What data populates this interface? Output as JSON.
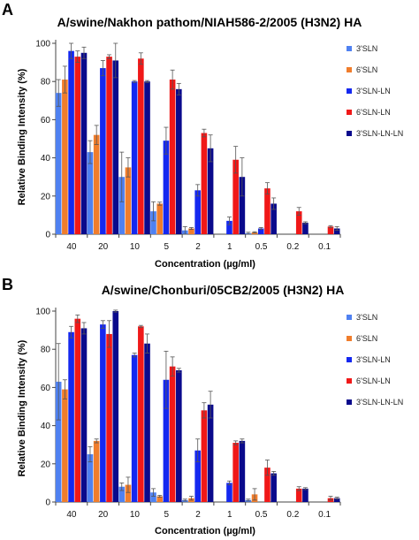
{
  "chart_data": [
    {
      "panel": "A",
      "type": "bar",
      "title": "A/swine/Nakhon pathom/NIAH586-2/2005 (H3N2) HA",
      "xlabel": "Concentration (µg/ml)",
      "ylabel": "Relative Binding Intensity (%)",
      "categories": [
        "40",
        "20",
        "10",
        "5",
        "2",
        "1",
        "0.5",
        "0.2",
        "0.1"
      ],
      "ylim": [
        0,
        100
      ],
      "yticks": [
        "0",
        "20",
        "40",
        "60",
        "80",
        "100"
      ],
      "grid": false,
      "legend_position": "right",
      "series": [
        {
          "name": "3'SLN",
          "color": "#4F81F1",
          "values": [
            74,
            43,
            30,
            12,
            2,
            0,
            0.5,
            0,
            0
          ],
          "errors": [
            7,
            6,
            13,
            5,
            2,
            0,
            0.5,
            0,
            0
          ]
        },
        {
          "name": "6'SLN",
          "color": "#F07D2C",
          "values": [
            81,
            52,
            35,
            16,
            3,
            0,
            1,
            0,
            0
          ],
          "errors": [
            7,
            5,
            5,
            0.8,
            0.5,
            0,
            0.3,
            0,
            0
          ]
        },
        {
          "name": "3'SLN-LN",
          "color": "#1428F0",
          "values": [
            96,
            87,
            80,
            49,
            23,
            7,
            3,
            0,
            0
          ],
          "errors": [
            4,
            4,
            0.5,
            7,
            3,
            2,
            0.5,
            0,
            0
          ]
        },
        {
          "name": "6'SLN-LN",
          "color": "#F01818",
          "values": [
            93,
            93,
            92,
            81,
            53,
            39,
            24,
            12,
            4
          ],
          "errors": [
            3,
            1,
            3,
            5,
            2,
            7,
            3,
            2,
            0.5
          ]
        },
        {
          "name": "3'SLN-LN-LN",
          "color": "#0A0A8C",
          "values": [
            95,
            91,
            80,
            76,
            45,
            30,
            16,
            6,
            3
          ],
          "errors": [
            3,
            9,
            0.5,
            3,
            7,
            10,
            3,
            0.5,
            1
          ]
        }
      ]
    },
    {
      "panel": "B",
      "type": "bar",
      "title": "A/swine/Chonburi/05CB2/2005 (H3N2) HA",
      "xlabel": "Concentration (µg/ml)",
      "ylabel": "Relative Binding Intensity (%)",
      "categories": [
        "40",
        "20",
        "10",
        "5",
        "2",
        "1",
        "0.5",
        "0.2",
        "0.1"
      ],
      "ylim": [
        0,
        100
      ],
      "yticks": [
        "0",
        "20",
        "40",
        "60",
        "80",
        "100"
      ],
      "grid": false,
      "legend_position": "right",
      "series": [
        {
          "name": "3'SLN",
          "color": "#4F81F1",
          "values": [
            63,
            25,
            8,
            5,
            1,
            0,
            1,
            0,
            0
          ],
          "errors": [
            20,
            4,
            2,
            2,
            0.5,
            0,
            0.5,
            0,
            0
          ]
        },
        {
          "name": "6'SLN",
          "color": "#F07D2C",
          "values": [
            59,
            32,
            9,
            3,
            2,
            0,
            4,
            0,
            0
          ],
          "errors": [
            5,
            1,
            4,
            0.5,
            1,
            0,
            3,
            0,
            0
          ]
        },
        {
          "name": "3'SLN-LN",
          "color": "#1428F0",
          "values": [
            89,
            93,
            77,
            64,
            27,
            10,
            0,
            0,
            0
          ],
          "errors": [
            3,
            2,
            1,
            15,
            6,
            1,
            0,
            0,
            0
          ]
        },
        {
          "name": "6'SLN-LN",
          "color": "#F01818",
          "values": [
            96,
            88,
            92,
            71,
            48,
            31,
            18,
            7,
            2
          ],
          "errors": [
            2,
            7,
            0.5,
            5,
            4,
            1,
            4,
            1,
            1
          ]
        },
        {
          "name": "3'SLN-LN-LN",
          "color": "#0A0A8C",
          "values": [
            91,
            100,
            83,
            69,
            51,
            32,
            15,
            7,
            2
          ],
          "errors": [
            3,
            0.5,
            5,
            1,
            7,
            1,
            1,
            0.5,
            0.5
          ]
        }
      ]
    }
  ]
}
